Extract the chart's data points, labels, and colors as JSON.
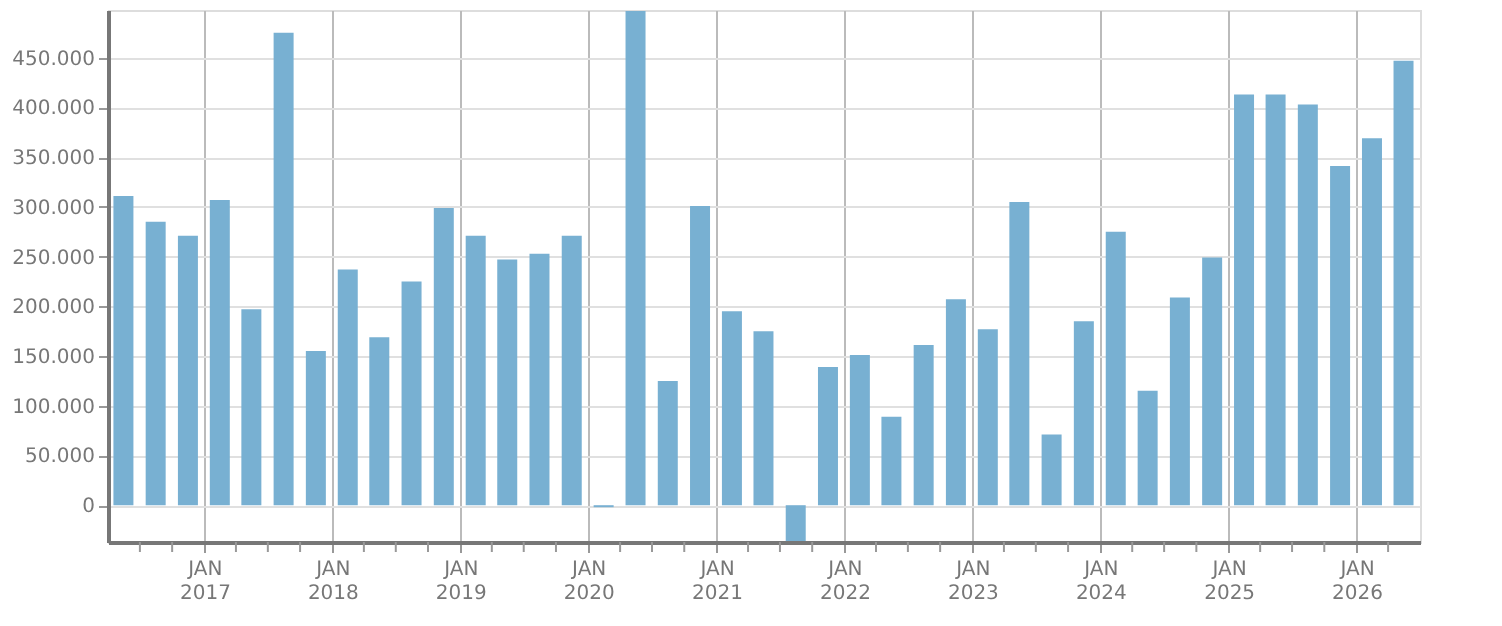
{
  "chart_data": {
    "type": "bar",
    "color": "#78b0d2",
    "x": [
      "2016-05-15",
      "2016-08-15",
      "2016-11-15",
      "2017-02-14",
      "2017-05-15",
      "2017-08-15",
      "2017-11-15",
      "2018-02-14",
      "2018-05-15",
      "2018-08-15",
      "2018-11-15",
      "2019-02-14",
      "2019-05-15",
      "2019-08-15",
      "2019-11-15",
      "2020-02-14",
      "2020-05-15",
      "2020-08-15",
      "2020-11-15",
      "2021-02-14",
      "2021-05-15",
      "2021-08-15",
      "2021-11-15",
      "2022-02-14",
      "2022-05-15",
      "2022-08-15",
      "2022-11-15",
      "2023-02-14",
      "2023-05-15",
      "2023-08-15",
      "2023-11-15",
      "2024-02-14",
      "2024-05-15",
      "2024-08-15",
      "2024-11-15",
      "2025-02-14",
      "2025-05-15",
      "2025-08-15",
      "2025-11-15",
      "2026-02-14",
      "2026-05-15"
    ],
    "values": [
      311000,
      285000,
      271000,
      307000,
      197000,
      475000,
      155000,
      237000,
      169000,
      225000,
      299000,
      271000,
      247000,
      253000,
      271000,
      -2000,
      497000,
      125000,
      301000,
      195000,
      175000,
      -36000,
      139000,
      151000,
      89000,
      161000,
      207000,
      177000,
      305000,
      71000,
      185000,
      275000,
      115000,
      209000,
      249000,
      413000,
      413000,
      403000,
      341000,
      369000,
      447000
    ],
    "xlim": [
      "2016-04",
      "2026-07"
    ],
    "xticks": [
      {
        "value": "2016-07",
        "label": null
      },
      {
        "value": "2016-10",
        "label": null
      },
      {
        "value": "2017-01",
        "label": "JAN\n2017"
      },
      {
        "value": "2017-04",
        "label": null
      },
      {
        "value": "2017-07",
        "label": null
      },
      {
        "value": "2017-10",
        "label": null
      },
      {
        "value": "2018-01",
        "label": "JAN\n2018"
      },
      {
        "value": "2018-04",
        "label": null
      },
      {
        "value": "2018-07",
        "label": null
      },
      {
        "value": "2018-10",
        "label": null
      },
      {
        "value": "2019-01",
        "label": "JAN\n2019"
      },
      {
        "value": "2019-04",
        "label": null
      },
      {
        "value": "2019-07",
        "label": null
      },
      {
        "value": "2019-10",
        "label": null
      },
      {
        "value": "2020-01",
        "label": "JAN\n2020"
      },
      {
        "value": "2020-04",
        "label": null
      },
      {
        "value": "2020-07",
        "label": null
      },
      {
        "value": "2020-10",
        "label": null
      },
      {
        "value": "2021-01",
        "label": "JAN\n2021"
      },
      {
        "value": "2021-04",
        "label": null
      },
      {
        "value": "2021-07",
        "label": null
      },
      {
        "value": "2021-10",
        "label": null
      },
      {
        "value": "2022-01",
        "label": "JAN\n2022"
      },
      {
        "value": "2022-04",
        "label": null
      },
      {
        "value": "2022-07",
        "label": null
      },
      {
        "value": "2022-10",
        "label": null
      },
      {
        "value": "2023-01",
        "label": "JAN\n2023"
      },
      {
        "value": "2023-04",
        "label": null
      },
      {
        "value": "2023-07",
        "label": null
      },
      {
        "value": "2023-10",
        "label": null
      },
      {
        "value": "2024-01",
        "label": "JAN\n2024"
      },
      {
        "value": "2024-04",
        "label": null
      },
      {
        "value": "2024-07",
        "label": null
      },
      {
        "value": "2024-10",
        "label": null
      },
      {
        "value": "2025-01",
        "label": "JAN\n2025"
      },
      {
        "value": "2025-04",
        "label": null
      },
      {
        "value": "2025-07",
        "label": null
      },
      {
        "value": "2025-10",
        "label": null
      },
      {
        "value": "2026-01",
        "label": "JAN\n2026"
      },
      {
        "value": "2026-04",
        "label": null
      }
    ],
    "ylim": [
      -37000,
      498000
    ],
    "yticks": [
      {
        "value": 0,
        "label": "0"
      },
      {
        "value": 50000,
        "label": "50.000"
      },
      {
        "value": 100000,
        "label": "100.000"
      },
      {
        "value": 150000,
        "label": "150.000"
      },
      {
        "value": 200000,
        "label": "200.000"
      },
      {
        "value": 250000,
        "label": "250.000"
      },
      {
        "value": 300000,
        "label": "300.000"
      },
      {
        "value": 350000,
        "label": "350.000"
      },
      {
        "value": 400000,
        "label": "400.000"
      },
      {
        "value": 450000,
        "label": "450.000"
      }
    ],
    "grid": true
  }
}
